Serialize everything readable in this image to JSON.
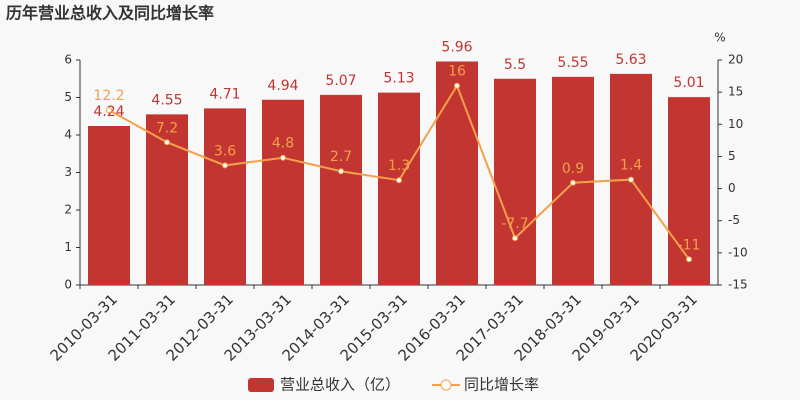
{
  "chart_data": {
    "type": "bar",
    "title": "历年营业总收入及同比增长率",
    "y2_label": "%",
    "categories": [
      "2010-03-31",
      "2011-03-31",
      "2012-03-31",
      "2013-03-31",
      "2014-03-31",
      "2015-03-31",
      "2016-03-31",
      "2017-03-31",
      "2018-03-31",
      "2019-03-31",
      "2020-03-31"
    ],
    "series": [
      {
        "name": "营业总收入（亿）",
        "type": "bar",
        "color": "#c23531",
        "values": [
          4.24,
          4.55,
          4.71,
          4.94,
          5.07,
          5.13,
          5.96,
          5.5,
          5.55,
          5.63,
          5.01
        ]
      },
      {
        "name": "同比增长率",
        "type": "line",
        "axis": "y2",
        "color": "#f5a04a",
        "values": [
          12.2,
          7.2,
          3.6,
          4.8,
          2.7,
          1.3,
          16,
          -7.7,
          0.9,
          1.4,
          -11
        ]
      }
    ],
    "ylim": [
      0,
      6
    ],
    "yticks": [
      0,
      1,
      2,
      3,
      4,
      5,
      6
    ],
    "y2lim": [
      -15,
      20
    ],
    "y2ticks": [
      -15,
      -10,
      -5,
      0,
      5,
      10,
      15,
      20
    ]
  }
}
